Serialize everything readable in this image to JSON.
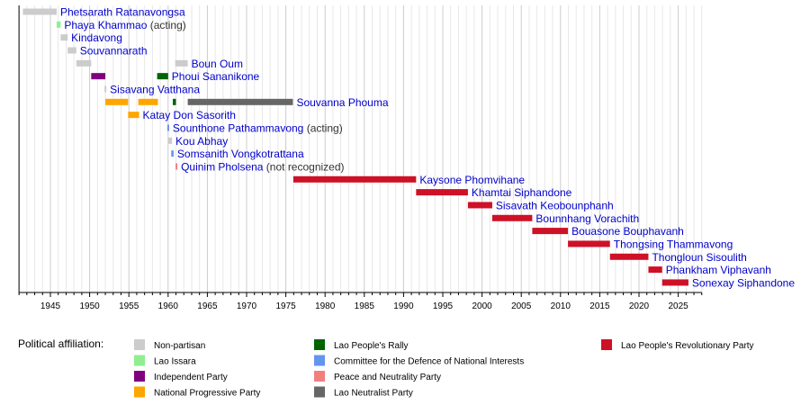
{
  "chart_data": {
    "type": "bar",
    "subtype": "timeline",
    "xlim": [
      1941,
      2028
    ],
    "x_ticks": [
      1945,
      1950,
      1955,
      1960,
      1965,
      1970,
      1975,
      1980,
      1985,
      1990,
      1995,
      2000,
      2005,
      2010,
      2015,
      2020,
      2025
    ],
    "grid": true,
    "legend_title": "Political affiliation:",
    "legend_position": "bottom",
    "parties": [
      {
        "name": "Non-partisan",
        "color": "#cccccc"
      },
      {
        "name": "Lao Issara",
        "color": "#90ee90"
      },
      {
        "name": "Independent Party",
        "color": "#800080"
      },
      {
        "name": "National Progressive Party",
        "color": "#ffa500"
      },
      {
        "name": "Lao People's Rally",
        "color": "#006400"
      },
      {
        "name": "Committee for the Defence of National Interests",
        "color": "#6495ed"
      },
      {
        "name": "Peace and Neutrality Party",
        "color": "#f08080"
      },
      {
        "name": "Lao Neutralist Party",
        "color": "#666666"
      },
      {
        "name": "Lao People's Revolutionary Party",
        "color": "#ce1126"
      }
    ],
    "rows": [
      {
        "name": "Phetsarath Ratanavongsa",
        "note": "",
        "terms": [
          {
            "start": 1941.5,
            "end": 1945.8,
            "party": 0
          }
        ]
      },
      {
        "name": "Phaya Khammao",
        "note": "(acting)",
        "terms": [
          {
            "start": 1945.8,
            "end": 1946.3,
            "party": 1
          }
        ]
      },
      {
        "name": "Kindavong",
        "note": "",
        "terms": [
          {
            "start": 1946.3,
            "end": 1947.2,
            "party": 0
          }
        ]
      },
      {
        "name": "Souvannarath",
        "note": "",
        "terms": [
          {
            "start": 1947.2,
            "end": 1948.3,
            "party": 0
          }
        ]
      },
      {
        "name": "Boun Oum",
        "note": "",
        "terms": [
          {
            "start": 1948.3,
            "end": 1950.2,
            "party": 0
          },
          {
            "start": 1960.9,
            "end": 1962.5,
            "party": 0
          }
        ]
      },
      {
        "name": "Phoui Sananikone",
        "note": "",
        "terms": [
          {
            "start": 1950.2,
            "end": 1952.0,
            "party": 2
          },
          {
            "start": 1958.6,
            "end": 1960.0,
            "party": 4
          }
        ]
      },
      {
        "name": "Sisavang Vatthana",
        "note": "",
        "terms": [
          {
            "start": 1951.9,
            "end": 1952.1,
            "party": 0
          }
        ]
      },
      {
        "name": "Souvanna Phouma",
        "note": "",
        "terms": [
          {
            "start": 1952.0,
            "end": 1954.9,
            "party": 3
          },
          {
            "start": 1956.2,
            "end": 1958.7,
            "party": 3
          },
          {
            "start": 1960.6,
            "end": 1961.0,
            "party": 4
          },
          {
            "start": 1962.5,
            "end": 1975.9,
            "party": 7
          }
        ]
      },
      {
        "name": "Katay Don Sasorith",
        "note": "",
        "terms": [
          {
            "start": 1954.9,
            "end": 1956.3,
            "party": 3
          }
        ]
      },
      {
        "name": "Sounthone Pathammavong",
        "note": "(acting)",
        "terms": [
          {
            "start": 1959.9,
            "end": 1960.1,
            "party": 5
          }
        ]
      },
      {
        "name": "Kou Abhay",
        "note": "",
        "terms": [
          {
            "start": 1960.0,
            "end": 1960.5,
            "party": 0
          }
        ]
      },
      {
        "name": "Somsanith Vongkotrattana",
        "note": "",
        "terms": [
          {
            "start": 1960.4,
            "end": 1960.7,
            "party": 5
          }
        ]
      },
      {
        "name": "Quinim Pholsena",
        "note": "(not recognized)",
        "terms": [
          {
            "start": 1960.95,
            "end": 1961.05,
            "party": 6
          }
        ]
      },
      {
        "name": "Kaysone Phomvihane",
        "note": "",
        "terms": [
          {
            "start": 1975.95,
            "end": 1991.6,
            "party": 8
          }
        ]
      },
      {
        "name": "Khamtai Siphandone",
        "note": "",
        "terms": [
          {
            "start": 1991.6,
            "end": 1998.2,
            "party": 8
          }
        ]
      },
      {
        "name": "Sisavath Keobounphanh",
        "note": "",
        "terms": [
          {
            "start": 1998.2,
            "end": 2001.3,
            "party": 8
          }
        ]
      },
      {
        "name": "Bounnhang Vorachith",
        "note": "",
        "terms": [
          {
            "start": 2001.3,
            "end": 2006.4,
            "party": 8
          }
        ]
      },
      {
        "name": "Bouasone Bouphavanh",
        "note": "",
        "terms": [
          {
            "start": 2006.4,
            "end": 2010.95,
            "party": 8
          }
        ]
      },
      {
        "name": "Thongsing Thammavong",
        "note": "",
        "terms": [
          {
            "start": 2010.95,
            "end": 2016.3,
            "party": 8
          }
        ]
      },
      {
        "name": "Thongloun Sisoulith",
        "note": "",
        "terms": [
          {
            "start": 2016.3,
            "end": 2021.2,
            "party": 8
          }
        ]
      },
      {
        "name": "Phankham Viphavanh",
        "note": "",
        "terms": [
          {
            "start": 2021.2,
            "end": 2022.95,
            "party": 8
          }
        ]
      },
      {
        "name": "Sonexay Siphandone",
        "note": "",
        "terms": [
          {
            "start": 2022.95,
            "end": 2026.3,
            "party": 8
          }
        ]
      }
    ]
  }
}
